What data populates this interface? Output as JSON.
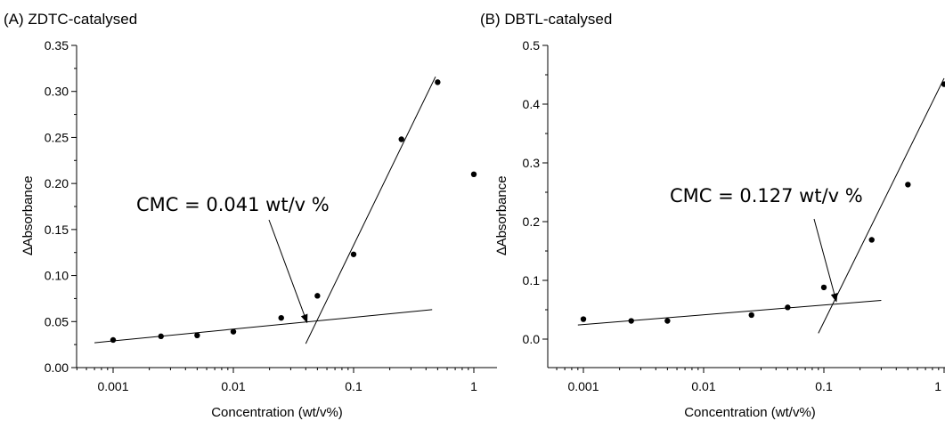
{
  "chart_data": [
    {
      "type": "scatter",
      "title": "(A) ZDTC-catalysed",
      "xlabel": "Concentration (wt/v%)",
      "ylabel": "∆Absorbance",
      "xscale": "log",
      "xlim": [
        0.0005,
        1.3
      ],
      "ylim": [
        0,
        0.35
      ],
      "xticks": [
        0.001,
        0.01,
        0.1,
        1
      ],
      "xtick_labels": [
        "0.001",
        "0.01",
        "0.1",
        "1"
      ],
      "yticks": [
        0,
        0.05,
        0.1,
        0.15,
        0.2,
        0.25,
        0.3,
        0.35
      ],
      "ytick_labels": [
        "0.00",
        "0.05",
        "0.10",
        "0.15",
        "0.20",
        "0.25",
        "0.30",
        "0.35"
      ],
      "grid": false,
      "series": [
        {
          "x": [
            0.001,
            0.0025,
            0.005,
            0.01,
            0.025,
            0.05,
            0.1,
            0.25,
            0.5,
            1.0
          ],
          "y": [
            0.03,
            0.034,
            0.035,
            0.039,
            0.054,
            0.078,
            0.123,
            0.248,
            0.31,
            0.21
          ]
        }
      ],
      "fit_lines": [
        {
          "x": [
            0.0007,
            0.45
          ],
          "y": [
            0.027,
            0.063
          ]
        },
        {
          "x": [
            0.04,
            0.48
          ],
          "y": [
            0.026,
            0.316
          ]
        }
      ],
      "annotation": {
        "text": "CMC = 0.041 wt/v %",
        "arrow_to": {
          "x": 0.041,
          "y": 0.049
        }
      }
    },
    {
      "type": "scatter",
      "title": "(B) DBTL-catalysed",
      "xlabel": "Concentration (wt/v%)",
      "ylabel": "∆Absorbance",
      "xscale": "log",
      "xlim": [
        0.0005,
        1.0
      ],
      "ylim": [
        -0.04,
        0.5
      ],
      "xticks": [
        0.001,
        0.01,
        0.1,
        1
      ],
      "xtick_labels": [
        "0.001",
        "0.01",
        "0.1",
        "1"
      ],
      "yticks": [
        0,
        0.1,
        0.2,
        0.3,
        0.4,
        0.5
      ],
      "ytick_labels": [
        "0.0",
        "0.1",
        "0.2",
        "0.3",
        "0.4",
        "0.5"
      ],
      "grid": false,
      "series": [
        {
          "x": [
            0.001,
            0.0025,
            0.005,
            0.025,
            0.05,
            0.1,
            0.25,
            0.5,
            1.0
          ],
          "y": [
            0.034,
            0.031,
            0.031,
            0.041,
            0.054,
            0.088,
            0.169,
            0.263,
            0.434
          ]
        }
      ],
      "fit_lines": [
        {
          "x": [
            0.0009,
            0.3
          ],
          "y": [
            0.024,
            0.066
          ]
        },
        {
          "x": [
            0.09,
            1.0
          ],
          "y": [
            0.01,
            0.444
          ]
        }
      ],
      "annotation": {
        "text": "CMC = 0.127 wt/v %",
        "arrow_to": {
          "x": 0.127,
          "y": 0.064
        }
      }
    }
  ]
}
